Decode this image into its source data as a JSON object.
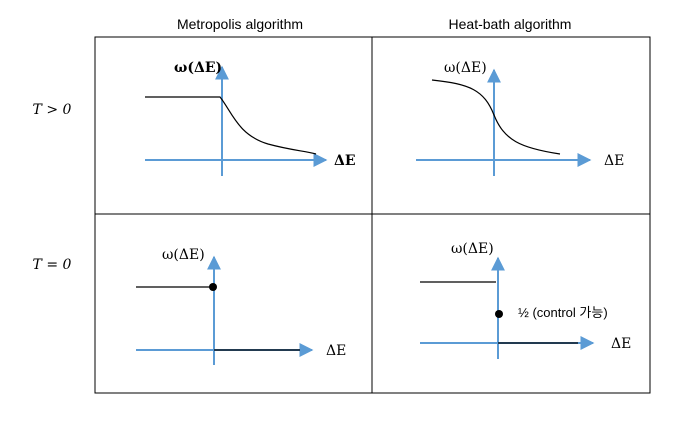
{
  "columns": {
    "metropolis": "Metropolis algorithm",
    "heatbath": "Heat-bath algorithm"
  },
  "rows": {
    "t_positive": "T > 0",
    "t_zero": "T = 0"
  },
  "panels": {
    "metropolis_t_positive": {
      "y_label": "ω(ΔE)",
      "x_label": "ΔE"
    },
    "heatbath_t_positive": {
      "y_label": "ω(ΔE)",
      "x_label": "ΔE"
    },
    "metropolis_t_zero": {
      "y_label": "ω(ΔE)",
      "x_label": "ΔE"
    },
    "heatbath_t_zero": {
      "y_label": "ω(ΔE)",
      "x_label": "ΔE",
      "annotation": "½ (control 가능)"
    }
  },
  "colors": {
    "axis": "#5b9bd5",
    "curve": "#000000",
    "frame": "#000000"
  }
}
